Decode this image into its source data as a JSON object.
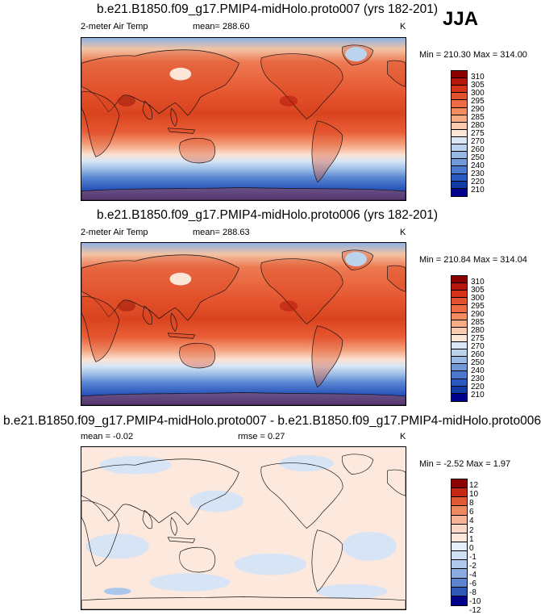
{
  "season": "JJA",
  "palettes": {
    "absolute": [
      "#8b0000",
      "#b5170f",
      "#d4321a",
      "#e4512e",
      "#ee6c45",
      "#f48c62",
      "#f7ab86",
      "#f9cbb0",
      "#fbe6d8",
      "#dbe7f6",
      "#bcd3ee",
      "#98b9e4",
      "#7199d8",
      "#4a78cc",
      "#2a59bf",
      "#123ba6",
      "#00008b"
    ],
    "difference": [
      "#8b0000",
      "#c42814",
      "#e05a35",
      "#ee8a62",
      "#f6b395",
      "#fad8c6",
      "#fce8dc",
      "#e4eefa",
      "#cfe0f4",
      "#b0c9ec",
      "#8cacdf",
      "#5d84cc",
      "#2f57b5",
      "#00008b"
    ]
  },
  "panels": [
    {
      "title": "b.e21.B1850.f09_g17.PMIP4-midHolo.proto007 (yrs 182-201)",
      "variable": "2-meter Air Temp",
      "stat_text": "mean= 288.60",
      "units": "K",
      "minmax": "Min = 210.30 Max = 314.00",
      "colorbar_levels": [
        "310",
        "305",
        "300",
        "295",
        "290",
        "285",
        "280",
        "275",
        "270",
        "260",
        "250",
        "240",
        "230",
        "220",
        "210"
      ]
    },
    {
      "title": "b.e21.B1850.f09_g17.PMIP4-midHolo.proto006 (yrs 182-201)",
      "variable": "2-meter Air Temp",
      "stat_text": "mean= 288.63",
      "units": "K",
      "minmax": "Min = 210.84 Max = 314.04",
      "colorbar_levels": [
        "310",
        "305",
        "300",
        "295",
        "290",
        "285",
        "280",
        "275",
        "270",
        "260",
        "250",
        "240",
        "230",
        "220",
        "210"
      ]
    },
    {
      "title": "b.e21.B1850.f09_g17.PMIP4-midHolo.proto007 - b.e21.B1850.f09_g17.PMIP4-midHolo.proto006",
      "mean_text": "mean =  -0.02",
      "rmse_text": "rmse =   0.27",
      "units": "K",
      "minmax": "Min =  -2.52 Max =   1.97",
      "colorbar_levels": [
        "12",
        "10",
        "8",
        "6",
        "4",
        "2",
        "1",
        "0",
        "-1",
        "-2",
        "-4",
        "-6",
        "-8",
        "-10",
        "-12"
      ]
    }
  ]
}
